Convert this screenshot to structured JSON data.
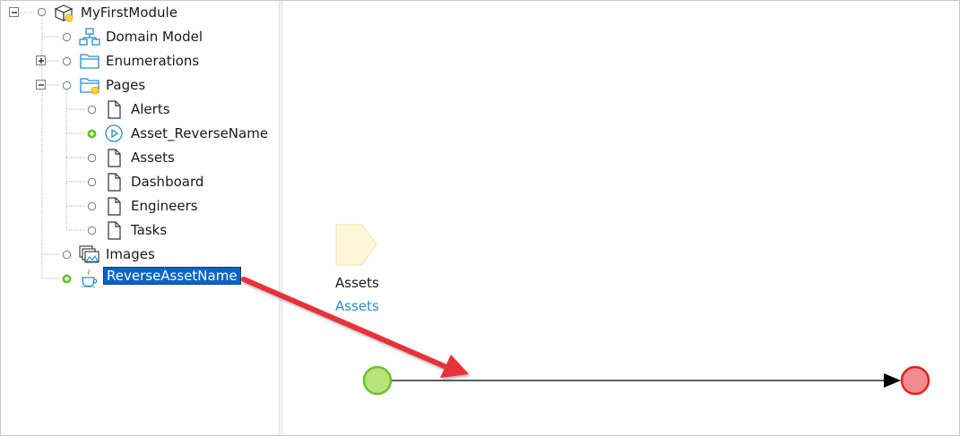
{
  "tree": {
    "module": {
      "label": "MyFirstModule",
      "icon": "module-box-icon",
      "expanded": true
    },
    "items": [
      {
        "label": "Domain Model",
        "icon": "domain-model-icon"
      },
      {
        "label": "Enumerations",
        "icon": "folder-icon",
        "expanded": false
      },
      {
        "label": "Pages",
        "icon": "folder-open-icon",
        "expanded": true,
        "children": [
          {
            "label": "Alerts",
            "icon": "page-icon"
          },
          {
            "label": "Asset_ReverseName",
            "icon": "play-circle-icon",
            "state": "added"
          },
          {
            "label": "Assets",
            "icon": "page-icon"
          },
          {
            "label": "Dashboard",
            "icon": "page-icon"
          },
          {
            "label": "Engineers",
            "icon": "page-icon"
          },
          {
            "label": "Tasks",
            "icon": "page-icon"
          }
        ]
      },
      {
        "label": "Images",
        "icon": "image-collection-icon"
      },
      {
        "label": "ReverseAssetName",
        "icon": "java-action-icon",
        "state": "added",
        "selected": true
      }
    ]
  },
  "canvas": {
    "parameter": {
      "name": "Assets",
      "type": "Assets"
    },
    "start_event_color": "#b8e27a",
    "end_event_color": "#f28c8c",
    "annotation_arrow_color": "#e8333a"
  }
}
